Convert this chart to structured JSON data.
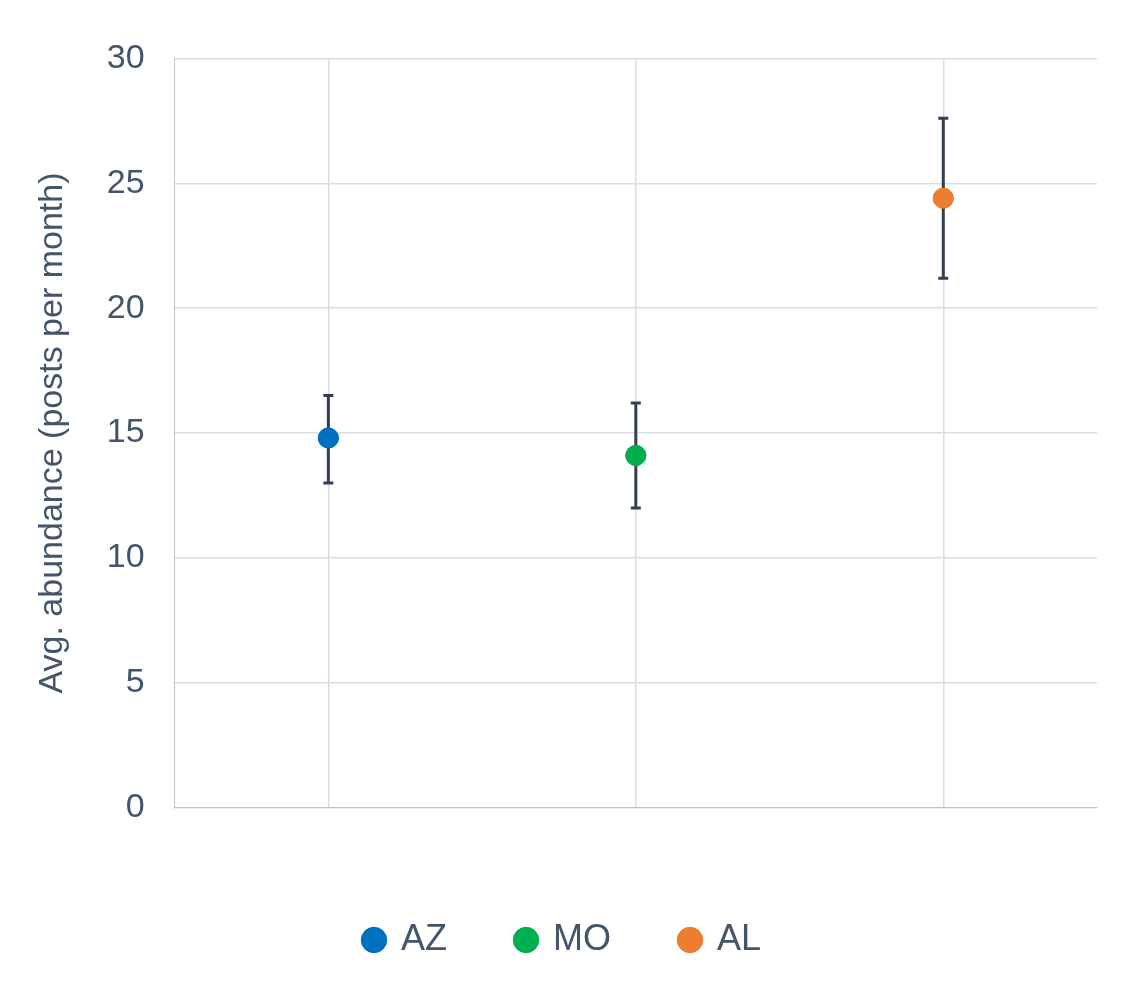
{
  "chart_data": {
    "type": "scatter",
    "ylabel": "Avg. abundance (posts per month)",
    "categories": [
      null,
      null,
      null
    ],
    "ylim": [
      0,
      30
    ],
    "yticks": [
      0,
      5,
      10,
      15,
      20,
      25,
      30
    ],
    "grid": true,
    "legend": "bottom",
    "marker": "circle",
    "series": [
      {
        "name": "AZ",
        "color": "#0070c0",
        "values": [
          14.8,
          null,
          null
        ],
        "errors": [
          [
            13.0,
            16.5
          ],
          null,
          null
        ]
      },
      {
        "name": "MO",
        "color": "#00b050",
        "values": [
          null,
          14.1,
          null
        ],
        "errors": [
          null,
          [
            12.0,
            16.2
          ],
          null
        ]
      },
      {
        "name": "AL",
        "color": "#ed7d31",
        "values": [
          null,
          null,
          24.4
        ],
        "errors": [
          null,
          null,
          [
            21.2,
            27.6
          ]
        ]
      }
    ]
  }
}
